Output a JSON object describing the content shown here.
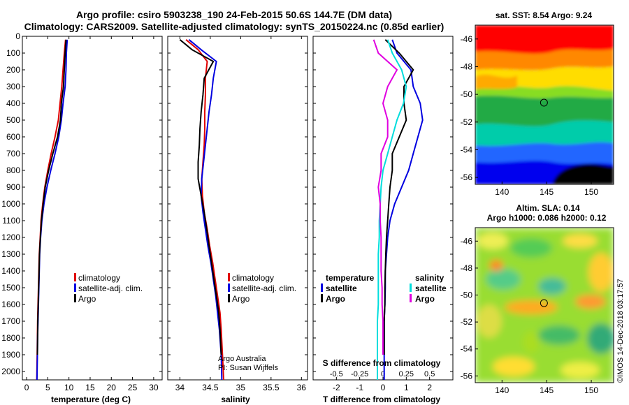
{
  "title": {
    "line1": "Argo profile: csiro 5903238_190 24-Feb-2015 50.6S 144.7E (DM data)",
    "line2": "Climatology: CARS2009. Satellite-adjusted climatology: synTS_20150224.nc (0.85d earlier)"
  },
  "colors": {
    "climatology": "#e00000",
    "satellite": "#0000e0",
    "argo": "#000000",
    "sat_salinity": "#00dddd",
    "argo_salinity": "#e000e0"
  },
  "chart_data": [
    {
      "type": "line",
      "xlabel": "temperature (deg C)",
      "ylabel": "",
      "xlim": [
        -1,
        32
      ],
      "ylim": [
        2050,
        0
      ],
      "xticks": [
        "0",
        "5",
        "10",
        "15",
        "20",
        "25",
        "30"
      ],
      "yticks": [
        "0",
        "100",
        "200",
        "300",
        "400",
        "500",
        "600",
        "700",
        "800",
        "900",
        "1000",
        "1100",
        "1200",
        "1300",
        "1400",
        "1500",
        "1600",
        "1700",
        "1800",
        "1900",
        "2000"
      ],
      "legend": [
        "climatology",
        "satellite-adj. clim.",
        "Argo"
      ],
      "series": [
        {
          "name": "climatology",
          "x": [
            9.2,
            8.9,
            8.6,
            8.3,
            7.9,
            7.5,
            6.7,
            5.8,
            5.0,
            4.3,
            3.8,
            3.4,
            3.2,
            3.0,
            2.9,
            2.8,
            2.7,
            2.6,
            2.55,
            2.5,
            2.4
          ],
          "y": [
            20,
            100,
            200,
            300,
            400,
            500,
            600,
            700,
            800,
            900,
            1000,
            1100,
            1200,
            1300,
            1400,
            1500,
            1600,
            1700,
            1800,
            1900,
            2050
          ]
        },
        {
          "name": "satellite-adj. clim.",
          "x": [
            9.6,
            9.4,
            9.3,
            9.1,
            8.6,
            8.2,
            7.6,
            6.7,
            5.7,
            4.8,
            4.1,
            3.6,
            3.3,
            3.1,
            3.0,
            2.9,
            2.8,
            2.7,
            2.6,
            2.55,
            2.45
          ],
          "y": [
            20,
            100,
            200,
            300,
            400,
            500,
            600,
            700,
            800,
            900,
            1000,
            1100,
            1200,
            1300,
            1400,
            1500,
            1600,
            1700,
            1800,
            1900,
            2050
          ]
        },
        {
          "name": "Argo",
          "x": [
            9.3,
            9.1,
            8.9,
            8.7,
            8.2,
            8.0,
            7.3,
            6.2,
            5.2,
            4.4,
            3.9,
            3.5,
            3.25,
            3.05,
            2.95,
            2.85,
            2.75,
            2.65,
            2.6,
            2.55
          ],
          "y": [
            20,
            100,
            200,
            300,
            400,
            500,
            600,
            700,
            800,
            900,
            1000,
            1100,
            1200,
            1300,
            1400,
            1500,
            1600,
            1700,
            1800,
            1900
          ]
        }
      ]
    },
    {
      "type": "line",
      "xlabel": "salinity",
      "xlim": [
        33.8,
        36.1
      ],
      "ylim": [
        2050,
        0
      ],
      "xticks": [
        "34",
        "34.5",
        "35",
        "35.5",
        "36"
      ],
      "legend": [
        "climatology",
        "satellite-adj. clim.",
        "Argo"
      ],
      "note1": "Argo Australia",
      "note2": "PI: Susan Wijffels",
      "series": [
        {
          "name": "climatology",
          "x": [
            34.1,
            34.3,
            34.45,
            34.42,
            34.42,
            34.41,
            34.41,
            34.4,
            34.38,
            34.36,
            34.37,
            34.4,
            34.45,
            34.49,
            34.54,
            34.58,
            34.62,
            34.66,
            34.68,
            34.7,
            34.72
          ],
          "y": [
            20,
            80,
            150,
            250,
            350,
            450,
            550,
            650,
            750,
            850,
            950,
            1050,
            1150,
            1250,
            1350,
            1450,
            1550,
            1650,
            1750,
            1900,
            2050
          ]
        },
        {
          "name": "satellite-adj. clim.",
          "x": [
            34.15,
            34.35,
            34.6,
            34.55,
            34.52,
            34.48,
            34.45,
            34.42,
            34.39,
            34.36,
            34.35,
            34.38,
            34.42,
            34.46,
            34.51,
            34.55,
            34.59,
            34.62,
            34.65,
            34.68,
            34.69
          ],
          "y": [
            20,
            80,
            150,
            250,
            350,
            450,
            550,
            650,
            750,
            850,
            950,
            1050,
            1150,
            1250,
            1350,
            1450,
            1550,
            1650,
            1750,
            1900,
            2050
          ]
        },
        {
          "name": "Argo",
          "x": [
            34.0,
            34.2,
            34.55,
            34.4,
            34.38,
            34.35,
            34.33,
            34.32,
            34.3,
            34.3,
            34.35,
            34.4,
            34.44,
            34.48,
            34.52,
            34.56,
            34.6,
            34.64,
            34.66,
            34.68
          ],
          "y": [
            20,
            80,
            150,
            250,
            350,
            450,
            550,
            650,
            750,
            850,
            950,
            1050,
            1150,
            1250,
            1350,
            1450,
            1550,
            1650,
            1750,
            1900
          ]
        }
      ]
    },
    {
      "type": "line",
      "xlabel": "T difference from climatology",
      "xlim": [
        -3,
        3
      ],
      "ylim": [
        2050,
        0
      ],
      "xticks": [
        "-2",
        "-1",
        "0",
        "1",
        "2"
      ],
      "top_xlabel": "S difference from climatology",
      "top_xticks": [
        "-0.5",
        "-0.25",
        "0",
        "0.25",
        "0.5"
      ],
      "legend_left_title": "temperature",
      "legend_right_title": "salinity",
      "legend": [
        "satellite",
        "Argo"
      ],
      "series": [
        {
          "name": "T satellite",
          "x": [
            0.4,
            0.6,
            1.2,
            1.3,
            1.6,
            1.7,
            1.5,
            1.3,
            1.1,
            0.8,
            0.5,
            0.3,
            0.2,
            0.15,
            0.1,
            0.1,
            0.08,
            0.05,
            0.05,
            0.05,
            0.05
          ],
          "y": [
            20,
            100,
            200,
            300,
            400,
            500,
            600,
            700,
            800,
            900,
            1000,
            1100,
            1200,
            1300,
            1400,
            1500,
            1600,
            1700,
            1800,
            1900,
            2050
          ]
        },
        {
          "name": "T Argo",
          "x": [
            0.1,
            0.7,
            1.3,
            0.9,
            0.9,
            1.0,
            0.7,
            0.4,
            0.4,
            0.3,
            0.25,
            0.2,
            0.15,
            0.12,
            0.1,
            0.08,
            0.08,
            0.05,
            0.05,
            0.05
          ],
          "y": [
            20,
            100,
            200,
            300,
            400,
            500,
            600,
            700,
            800,
            900,
            1000,
            1100,
            1200,
            1300,
            1400,
            1500,
            1600,
            1700,
            1800,
            1900
          ]
        },
        {
          "name": "S satellite",
          "x": [
            0.05,
            0.1,
            0.2,
            0.25,
            0.22,
            0.15,
            0.1,
            0.05,
            0.0,
            -0.02,
            -0.03,
            -0.04,
            -0.04,
            -0.05,
            -0.05,
            -0.05,
            -0.05,
            -0.06,
            -0.06,
            -0.06,
            -0.06
          ],
          "y": [
            20,
            100,
            200,
            300,
            400,
            500,
            600,
            700,
            800,
            900,
            1000,
            1100,
            1200,
            1300,
            1400,
            1500,
            1600,
            1700,
            1800,
            1900,
            2050
          ]
        },
        {
          "name": "S Argo",
          "x": [
            -0.1,
            -0.05,
            0.15,
            0.05,
            0.0,
            0.05,
            0.05,
            -0.02,
            -0.02,
            -0.05,
            -0.03,
            -0.03,
            -0.02,
            -0.02,
            -0.02,
            -0.01,
            -0.01,
            0.0,
            0.0,
            0.0
          ],
          "y": [
            20,
            100,
            200,
            300,
            400,
            500,
            600,
            700,
            800,
            900,
            1000,
            1100,
            1200,
            1300,
            1400,
            1500,
            1600,
            1700,
            1800,
            1900
          ]
        }
      ]
    },
    {
      "type": "heatmap",
      "title": "sat. SST: 8.54 Argo: 9.24",
      "xticks": [
        "140",
        "145",
        "150"
      ],
      "yticks": [
        "-46",
        "-48",
        "-50",
        "-52",
        "-54",
        "-56"
      ],
      "xlim": [
        137,
        152.5
      ],
      "ylim": [
        -56.5,
        -45
      ],
      "marker": {
        "lon": 144.7,
        "lat": -50.6
      }
    },
    {
      "type": "heatmap",
      "title": "Altim. SLA: 0.14",
      "subtitle": "Argo h1000: 0.086 h2000: 0.12",
      "xticks": [
        "140",
        "145",
        "150"
      ],
      "yticks": [
        "-46",
        "-48",
        "-50",
        "-52",
        "-54",
        "-56"
      ],
      "xlim": [
        137,
        152.5
      ],
      "ylim": [
        -56.5,
        -45
      ],
      "marker": {
        "lon": 144.7,
        "lat": -50.6
      }
    }
  ],
  "watermark": "©IMOS 14-Dec-2018 03:17:57"
}
